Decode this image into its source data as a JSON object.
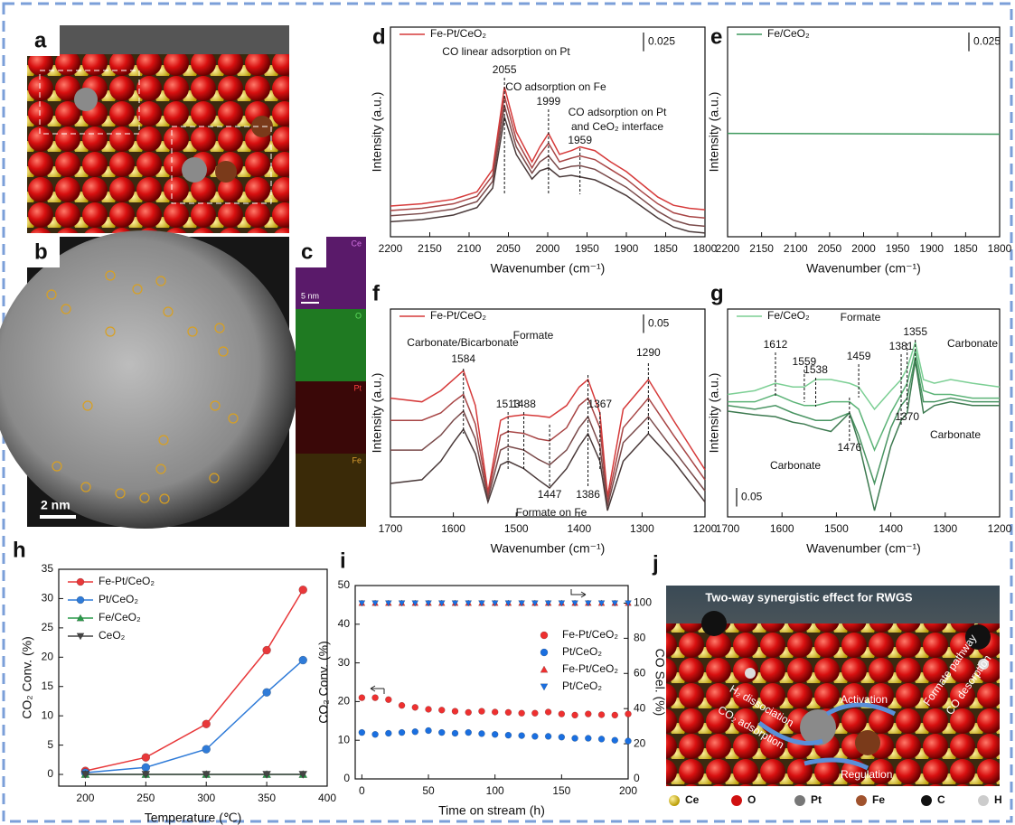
{
  "figure": {
    "panels": [
      "a",
      "b",
      "c",
      "j"
    ],
    "b_scale": "2 nm",
    "c_channels": [
      "Ce",
      "O",
      "Pt",
      "Fe"
    ],
    "c_scale": "5 nm",
    "j_title": "Two-way synergistic effect for RWGS",
    "j_labels": [
      "H₂ dissociation",
      "CO₂ adsorption",
      "Activation",
      "Regulation",
      "Formate pathway",
      "CO desorption"
    ],
    "j_legend": [
      "Ce",
      "O",
      "Pt",
      "Fe",
      "C",
      "H"
    ]
  },
  "chart_data": [
    {
      "type": "line",
      "panel": "d",
      "x_label": "Wavenumber (cm⁻¹)",
      "y_label": "Intensity (a.u.)",
      "xlim": [
        2200,
        1800
      ],
      "ylim": [
        0,
        0.28
      ],
      "xticks": [
        2200,
        2150,
        2100,
        2050,
        2000,
        1950,
        1900,
        1850,
        1800
      ],
      "scale_bar": 0.025,
      "legend": "upper left",
      "lines": true,
      "x": [
        2200,
        2160,
        2120,
        2090,
        2070,
        2055,
        2040,
        2020,
        2010,
        1999,
        1985,
        1970,
        1959,
        1940,
        1920,
        1900,
        1880,
        1860,
        1840,
        1820,
        1800
      ],
      "series": [
        {
          "name": "Fe-Pt/CeO₂",
          "color": "#d63a3a",
          "values": [
            0.041,
            0.044,
            0.05,
            0.06,
            0.09,
            0.2,
            0.14,
            0.1,
            0.12,
            0.138,
            0.11,
            0.115,
            0.12,
            0.115,
            0.1,
            0.087,
            0.07,
            0.053,
            0.042,
            0.038,
            0.036
          ]
        },
        {
          "color": "#a84545",
          "values": [
            0.035,
            0.038,
            0.044,
            0.054,
            0.082,
            0.188,
            0.13,
            0.092,
            0.11,
            0.125,
            0.1,
            0.105,
            0.108,
            0.103,
            0.09,
            0.077,
            0.06,
            0.044,
            0.032,
            0.027,
            0.025
          ]
        },
        {
          "color": "#7a4a4a",
          "values": [
            0.028,
            0.031,
            0.037,
            0.047,
            0.074,
            0.175,
            0.12,
            0.085,
            0.1,
            0.108,
            0.09,
            0.094,
            0.095,
            0.09,
            0.078,
            0.066,
            0.05,
            0.034,
            0.022,
            0.016,
            0.014
          ]
        },
        {
          "color": "#4a3a3a",
          "values": [
            0.02,
            0.023,
            0.029,
            0.039,
            0.065,
            0.16,
            0.11,
            0.077,
            0.088,
            0.092,
            0.08,
            0.082,
            0.08,
            0.076,
            0.066,
            0.055,
            0.04,
            0.025,
            0.013,
            0.007,
            0.005
          ]
        }
      ],
      "peaks": [
        2055,
        1999,
        1959
      ],
      "annotations": [
        "CO linear adsorption on Pt",
        "CO adsorption on Fe",
        "CO adsorption on Pt",
        "and CeO₂ interface"
      ]
    },
    {
      "type": "line",
      "panel": "e",
      "x_label": "Wavenumber (cm⁻¹)",
      "y_label": "Intensity (a.u.)",
      "xlim": [
        2200,
        1800
      ],
      "ylim": [
        0,
        0.28
      ],
      "xticks": [
        2200,
        2150,
        2100,
        2050,
        2000,
        1950,
        1900,
        1850,
        1800
      ],
      "scale_bar": 0.025,
      "legend": "upper left",
      "lines": true,
      "x": [
        2200,
        1800
      ],
      "series": [
        {
          "name": "Fe/CeO₂",
          "color": "#3f9a5e",
          "values": [
            0.138,
            0.137
          ]
        }
      ]
    },
    {
      "type": "line",
      "panel": "f",
      "x_label": "Wavenumber (cm⁻¹)",
      "y_label": "Intensity (a.u.)",
      "xlim": [
        1700,
        1200
      ],
      "ylim": [
        0,
        0.56
      ],
      "xticks": [
        1700,
        1600,
        1500,
        1400,
        1300,
        1200
      ],
      "scale_bar": 0.05,
      "legend": "upper left",
      "lines": true,
      "x": [
        1700,
        1650,
        1620,
        1600,
        1584,
        1565,
        1545,
        1525,
        1513,
        1488,
        1465,
        1447,
        1420,
        1400,
        1386,
        1367,
        1355,
        1330,
        1290,
        1250,
        1200
      ],
      "series": [
        {
          "name": "Fe-Pt/CeO₂",
          "color": "#d63a3a",
          "values": [
            0.32,
            0.31,
            0.34,
            0.37,
            0.394,
            0.3,
            0.066,
            0.26,
            0.27,
            0.275,
            0.272,
            0.268,
            0.3,
            0.35,
            0.37,
            0.28,
            0.054,
            0.29,
            0.37,
            0.26,
            0.127
          ]
        },
        {
          "color": "#a84545",
          "values": [
            0.26,
            0.26,
            0.28,
            0.31,
            0.33,
            0.25,
            0.058,
            0.22,
            0.23,
            0.225,
            0.21,
            0.205,
            0.24,
            0.3,
            0.32,
            0.24,
            0.04,
            0.24,
            0.32,
            0.22,
            0.1
          ]
        },
        {
          "color": "#7a4a4a",
          "values": [
            0.18,
            0.18,
            0.22,
            0.26,
            0.285,
            0.21,
            0.049,
            0.18,
            0.19,
            0.18,
            0.155,
            0.14,
            0.18,
            0.24,
            0.27,
            0.19,
            0.028,
            0.2,
            0.27,
            0.18,
            0.07
          ]
        },
        {
          "color": "#4a3a3a",
          "values": [
            0.09,
            0.1,
            0.15,
            0.2,
            0.236,
            0.17,
            0.04,
            0.14,
            0.15,
            0.13,
            0.1,
            0.078,
            0.13,
            0.19,
            0.224,
            0.15,
            0.017,
            0.15,
            0.224,
            0.15,
            0.04
          ]
        }
      ],
      "peaks": [
        1584,
        1513,
        1488,
        1447,
        1386,
        1367,
        1290
      ],
      "annotations": [
        "Carbonate/Bicarbonate",
        "Formate",
        "Formate on Fe"
      ]
    },
    {
      "type": "line",
      "panel": "g",
      "x_label": "Wavenumber (cm⁻¹)",
      "y_label": "Intensity (a.u.)",
      "xlim": [
        1700,
        1200
      ],
      "ylim": [
        0,
        0.56
      ],
      "xticks": [
        1700,
        1600,
        1500,
        1400,
        1300,
        1200
      ],
      "scale_bar": 0.05,
      "legend": "upper left",
      "lines": true,
      "x": [
        1700,
        1650,
        1612,
        1580,
        1559,
        1538,
        1510,
        1476,
        1459,
        1430,
        1400,
        1381,
        1370,
        1355,
        1340,
        1320,
        1290,
        1250,
        1200
      ],
      "series": [
        {
          "name": "Fe/CeO₂",
          "color": "#7ccf94",
          "values": [
            0.33,
            0.34,
            0.36,
            0.35,
            0.35,
            0.37,
            0.37,
            0.36,
            0.35,
            0.29,
            0.34,
            0.37,
            0.4,
            0.47,
            0.37,
            0.36,
            0.37,
            0.36,
            0.35
          ]
        },
        {
          "color": "#5cb377",
          "values": [
            0.31,
            0.31,
            0.33,
            0.31,
            0.3,
            0.3,
            0.31,
            0.31,
            0.29,
            0.18,
            0.28,
            0.33,
            0.36,
            0.45,
            0.34,
            0.33,
            0.33,
            0.32,
            0.32
          ]
        },
        {
          "color": "#4a9563",
          "values": [
            0.3,
            0.29,
            0.3,
            0.28,
            0.27,
            0.26,
            0.26,
            0.28,
            0.22,
            0.09,
            0.24,
            0.3,
            0.32,
            0.43,
            0.31,
            0.31,
            0.32,
            0.31,
            0.31
          ]
        },
        {
          "color": "#3d7a50",
          "values": [
            0.285,
            0.275,
            0.27,
            0.255,
            0.25,
            0.24,
            0.23,
            0.28,
            0.2,
            0.017,
            0.19,
            0.26,
            0.28,
            0.42,
            0.28,
            0.3,
            0.31,
            0.3,
            0.3
          ]
        }
      ],
      "peaks": [
        1612,
        1559,
        1538,
        1459,
        1381,
        1355,
        1370,
        1476
      ],
      "annotations": [
        "Formate",
        "Carbonate",
        "Carbonate",
        "Carbonate"
      ]
    },
    {
      "type": "line",
      "panel": "h",
      "x_label": "Temperature (℃)",
      "y_label": "CO₂ Conv. (%)",
      "xlim": [
        178,
        400
      ],
      "ylim": [
        -2,
        35
      ],
      "xticks": [
        200,
        250,
        300,
        350,
        400
      ],
      "yticks": [
        0,
        5,
        10,
        15,
        20,
        25,
        30,
        35
      ],
      "legend": "upper left",
      "lines": true,
      "x": [
        200,
        250,
        300,
        350,
        380
      ],
      "series": [
        {
          "name": "Fe-Pt/CeO₂",
          "color": "#e8383a",
          "marker": "circle",
          "values": [
            0.6,
            2.9,
            8.6,
            21.2,
            31.5
          ]
        },
        {
          "name": "Pt/CeO₂",
          "color": "#2f7bd8",
          "marker": "circle",
          "values": [
            0.3,
            1.2,
            4.3,
            14,
            19.5
          ]
        },
        {
          "name": "Fe/CeO₂",
          "color": "#2a9a4a",
          "marker": "triangle",
          "values": [
            0,
            0,
            0,
            0,
            0
          ]
        },
        {
          "name": "CeO₂",
          "color": "#444444",
          "marker": "triangle-down",
          "values": [
            0,
            0,
            0,
            0,
            0
          ]
        }
      ]
    },
    {
      "type": "scatter",
      "panel": "i",
      "x_label": "Time on stream (h)",
      "y_label": "CO₂ Conv. (%)",
      "y2_label": "CO Sel. (%)",
      "xlim": [
        -5,
        200
      ],
      "ylim": [
        0,
        50
      ],
      "y2lim": [
        0,
        110
      ],
      "xticks": [
        0,
        50,
        100,
        150,
        200
      ],
      "yticks": [
        0,
        10,
        20,
        30,
        40,
        50
      ],
      "y2ticks": [
        0,
        20,
        40,
        60,
        80,
        100
      ],
      "legend": "center right",
      "lines": false,
      "x": [
        0,
        10,
        20,
        30,
        40,
        50,
        60,
        70,
        80,
        90,
        100,
        110,
        120,
        130,
        140,
        150,
        160,
        170,
        180,
        190,
        200
      ],
      "series": [
        {
          "name": "Fe-Pt/CeO₂",
          "color": "#ee3030",
          "marker": "circle",
          "values": [
            21,
            21,
            20.5,
            19,
            18.5,
            18,
            17.8,
            17.5,
            17.2,
            17.5,
            17.3,
            17.2,
            17,
            17,
            17.3,
            16.8,
            16.5,
            16.8,
            16.6,
            16.5,
            16.8
          ]
        },
        {
          "name": "Pt/CeO₂",
          "color": "#1a6fe0",
          "marker": "circle",
          "values": [
            12,
            11.5,
            11.8,
            12,
            12.2,
            12.5,
            12,
            11.8,
            12,
            11.7,
            11.5,
            11.3,
            11.2,
            11,
            11,
            10.8,
            10.5,
            10.5,
            10.3,
            10,
            9.8
          ]
        },
        {
          "name": "Fe-Pt/CeO₂",
          "color": "#ee3030",
          "marker": "triangle",
          "axis": "y2",
          "values": [
            100,
            100,
            100,
            100,
            100,
            100,
            100,
            100,
            100,
            100,
            100,
            100,
            100,
            100,
            100,
            100,
            100,
            100,
            100,
            100,
            100
          ]
        },
        {
          "name": "Pt/CeO₂",
          "color": "#1a6fe0",
          "marker": "triangle-down",
          "axis": "y2",
          "values": [
            100,
            100,
            100,
            100,
            100,
            100,
            100,
            100,
            100,
            100,
            100,
            100,
            100,
            100,
            100,
            100,
            100,
            100,
            100,
            100,
            100
          ]
        }
      ]
    }
  ]
}
